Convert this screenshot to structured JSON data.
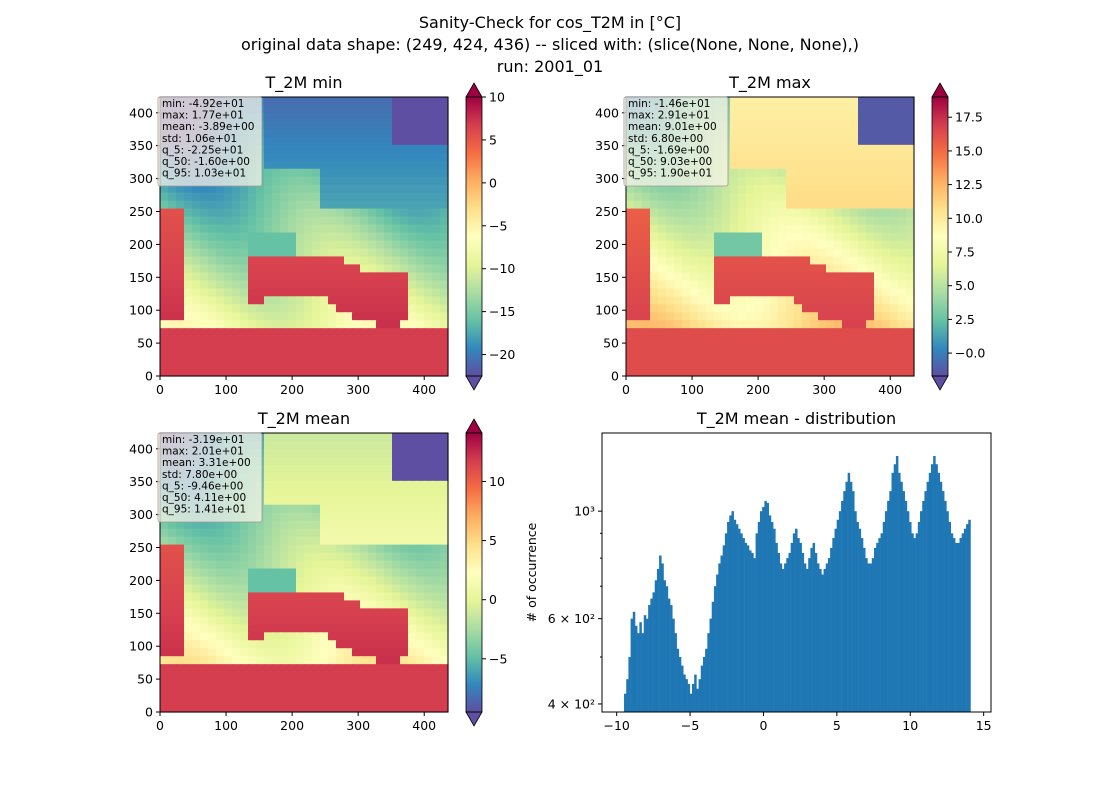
{
  "figure": {
    "title_lines": [
      "Sanity-Check for cos_T2M in [°C]",
      "original data shape: (249, 424, 436) -- sliced with: (slice(None, None, None),)",
      "run: 2001_01"
    ]
  },
  "colors": {
    "histogram_bar": "#1f77b4",
    "colormap": "Spectral_r",
    "axes": "#000000",
    "stats_box_bg": "#fdf6e9"
  },
  "chart_data": [
    {
      "type": "heatmap",
      "title": "T_2M min",
      "xlim": [
        0,
        436
      ],
      "ylim": [
        0,
        424
      ],
      "x_ticks": [
        0,
        100,
        200,
        300,
        400
      ],
      "y_ticks": [
        0,
        50,
        100,
        150,
        200,
        250,
        300,
        350,
        400
      ],
      "colorbar": {
        "range": [
          -22.5,
          10
        ],
        "ticks": [
          10,
          5,
          0,
          -5,
          -10,
          -15,
          -20
        ],
        "tick_labels": [
          "10",
          "5",
          "0",
          "−5",
          "−10",
          "−15",
          "−20"
        ],
        "extend": "both"
      },
      "stats": [
        "min: -4.92e+01",
        "max: 1.77e+01",
        "mean: -3.89e+00",
        "std: 1.06e+01",
        "q_5: -2.25e+01",
        "q_50: -1.60e+00",
        "q_95: 1.03e+01"
      ]
    },
    {
      "type": "heatmap",
      "title": "T_2M max",
      "xlim": [
        0,
        436
      ],
      "ylim": [
        0,
        424
      ],
      "x_ticks": [
        0,
        100,
        200,
        300,
        400
      ],
      "y_ticks": [
        0,
        50,
        100,
        150,
        200,
        250,
        300,
        350,
        400
      ],
      "colorbar": {
        "range": [
          -1.7,
          19
        ],
        "ticks": [
          17.5,
          15.0,
          12.5,
          10.0,
          7.5,
          5.0,
          2.5,
          0.0
        ],
        "tick_labels": [
          "17.5",
          "15.0",
          "12.5",
          "10.0",
          "7.5",
          "5.0",
          "2.5",
          "−0.0"
        ],
        "extend": "both"
      },
      "stats": [
        "min: -1.46e+01",
        "max: 2.91e+01",
        "mean: 9.01e+00",
        "std: 6.80e+00",
        "q_5: -1.69e+00",
        "q_50: 9.03e+00",
        "q_95: 1.90e+01"
      ]
    },
    {
      "type": "heatmap",
      "title": "T_2M mean",
      "xlim": [
        0,
        436
      ],
      "ylim": [
        0,
        424
      ],
      "x_ticks": [
        0,
        100,
        200,
        300,
        400
      ],
      "y_ticks": [
        0,
        50,
        100,
        150,
        200,
        250,
        300,
        350,
        400
      ],
      "colorbar": {
        "range": [
          -9.5,
          14.1
        ],
        "ticks": [
          10,
          5,
          0,
          -5
        ],
        "tick_labels": [
          "10",
          "5",
          "0",
          "−5"
        ],
        "extend": "both"
      },
      "stats": [
        "min: -3.19e+01",
        "max: 2.01e+01",
        "mean: 3.31e+00",
        "std: 7.80e+00",
        "q_5: -9.46e+00",
        "q_50: 4.11e+00",
        "q_95: 1.41e+01"
      ]
    },
    {
      "type": "bar",
      "title": "T_2M mean - distribution",
      "xlabel": "",
      "ylabel": "# of occurrence",
      "xlim": [
        -11,
        15.5
      ],
      "ylim": [
        385,
        1450
      ],
      "y_scale": "log",
      "x_ticks": [
        -10,
        -5,
        0,
        5,
        10,
        15
      ],
      "x_tick_labels": [
        "−10",
        "−5",
        "0",
        "5",
        "10",
        "15"
      ],
      "y_ticks": [
        400,
        600,
        1000
      ],
      "y_tick_labels": [
        "4 × 10²",
        "6 × 10²",
        "10³"
      ],
      "bin_range": [
        -9.5,
        14.1
      ],
      "values": [
        420,
        450,
        500,
        600,
        620,
        580,
        560,
        590,
        560,
        610,
        600,
        640,
        660,
        680,
        720,
        760,
        810,
        780,
        720,
        700,
        660,
        640,
        600,
        560,
        520,
        500,
        480,
        460,
        450,
        440,
        420,
        440,
        460,
        430,
        450,
        480,
        500,
        520,
        560,
        600,
        650,
        700,
        740,
        780,
        810,
        850,
        900,
        950,
        980,
        1000,
        960,
        940,
        920,
        900,
        880,
        860,
        850,
        830,
        820,
        800,
        900,
        950,
        1000,
        1020,
        1050,
        1040,
        980,
        950,
        920,
        860,
        820,
        780,
        760,
        780,
        800,
        820,
        860,
        900,
        920,
        880,
        860,
        820,
        780,
        760,
        800,
        840,
        860,
        820,
        780,
        760,
        740,
        760,
        780,
        800,
        840,
        880,
        920,
        960,
        1000,
        1050,
        1100,
        1150,
        1200,
        1150,
        1100,
        1000,
        950,
        920,
        880,
        840,
        800,
        780,
        780,
        800,
        840,
        860,
        880,
        900,
        950,
        1000,
        1050,
        1100,
        1200,
        1250,
        1300,
        1200,
        1150,
        1100,
        1050,
        1000,
        950,
        900,
        880,
        900,
        950,
        1000,
        1050,
        1100,
        1150,
        1200,
        1250,
        1300,
        1250,
        1200,
        1150,
        1100,
        1050,
        1000,
        950,
        900,
        880,
        860,
        860,
        880,
        900,
        920,
        940,
        960
      ]
    }
  ]
}
